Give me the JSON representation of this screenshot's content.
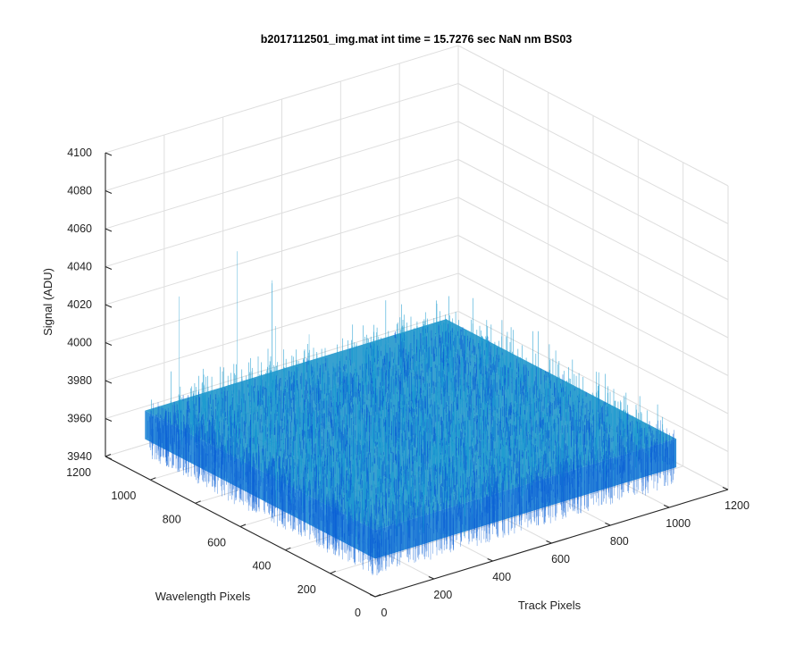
{
  "chart_data": {
    "type": "surface3d",
    "title": "b2017112501_img.mat int time = 15.7276 sec  NaN nm BS03",
    "xlabel": "Track Pixels",
    "ylabel": "Wavelength Pixels",
    "zlabel": "Signal (ADU)",
    "xlim": [
      0,
      1200
    ],
    "ylim": [
      0,
      1200
    ],
    "zlim": [
      3940,
      4100
    ],
    "x_ticks": [
      "0",
      "200",
      "400",
      "600",
      "800",
      "1000",
      "1200"
    ],
    "y_ticks": [
      "0",
      "200",
      "400",
      "600",
      "800",
      "1000",
      "1200"
    ],
    "z_ticks": [
      "3940",
      "3960",
      "3980",
      "4000",
      "4020",
      "4040",
      "4060",
      "4080",
      "4100"
    ],
    "grid": true,
    "colormap": "parula",
    "surface": {
      "x_range": [
        0,
        1024
      ],
      "y_range": [
        0,
        1024
      ],
      "z_mean": 3975,
      "z_noise_range": [
        3945,
        4040
      ],
      "outlier_max": 4060
    },
    "colors": {
      "surface_low": "#0a5fd6",
      "surface_mid": "#1a9bd0",
      "surface_high": "#2ab6b0",
      "grid": "#dedede",
      "axis": "#262626"
    }
  }
}
